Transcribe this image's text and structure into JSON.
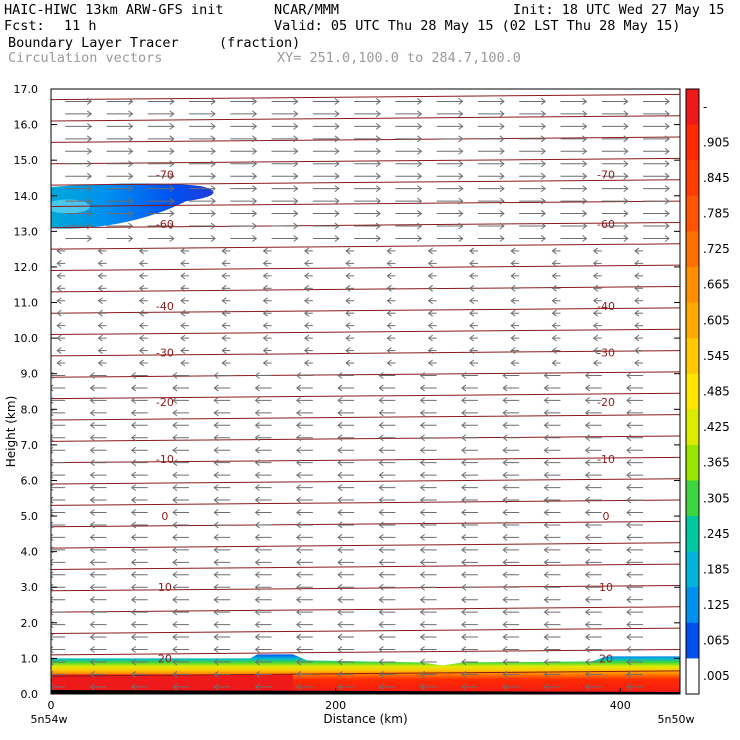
{
  "header": {
    "model": "HAIC-HIWC 13km ARW-GFS init",
    "org": "NCAR/MMM",
    "init": "Init: 18 UTC Wed 27 May 15",
    "fcst_label": "Fcst:",
    "fcst_value": "11 h",
    "valid": "Valid: 05 UTC Thu 28 May 15 (02 LST Thu 28 May 15)",
    "field": "Boundary Layer Tracer",
    "field_units": "(fraction)",
    "vectors": "Circulation vectors",
    "xy": "XY= 251.0,100.0 to 284.7,100.0"
  },
  "chart_data": {
    "type": "heatmap",
    "title": "Boundary Layer Tracer",
    "xlabel": "Distance (km)",
    "ylabel": "Height (km)",
    "xlim": [
      0,
      442
    ],
    "ylim": [
      0,
      17
    ],
    "x_ticks": [
      "0",
      "200",
      "400"
    ],
    "y_ticks": [
      "0.0",
      "1.0",
      "2.0",
      "3.0",
      "4.0",
      "5.0",
      "6.0",
      "7.0",
      "8.0",
      "9.0",
      "10.0",
      "11.0",
      "12.0",
      "13.0",
      "14.0",
      "15.0",
      "16.0",
      "17.0"
    ],
    "x_endpoint_labels": [
      "5n54w",
      "5n50w"
    ],
    "colorbar": {
      "labels": [
        "-",
        ".905",
        ".845",
        ".785",
        ".725",
        ".665",
        ".605",
        ".545",
        ".485",
        ".425",
        ".365",
        ".305",
        ".245",
        ".185",
        ".125",
        ".065",
        ".005"
      ],
      "colors": [
        "#ee1a1a",
        "#ff2a00",
        "#ff3c00",
        "#ff5500",
        "#ff7000",
        "#ff8e00",
        "#ffaa00",
        "#ffc800",
        "#ffe600",
        "#dcec00",
        "#98e600",
        "#3ed63e",
        "#00c8a0",
        "#00b4dc",
        "#0090f0",
        "#0050f0",
        "#ffffff"
      ]
    },
    "temperature_contours": [
      {
        "value": 20,
        "label": "20",
        "height_km": 1.0
      },
      {
        "value": 10,
        "label": "10",
        "height_km": 3.0
      },
      {
        "value": 0,
        "label": "0",
        "height_km": 5.0
      },
      {
        "value": -10,
        "label": "-10",
        "height_km": 6.6
      },
      {
        "value": -20,
        "label": "-20",
        "height_km": 8.2
      },
      {
        "value": -30,
        "label": "-30",
        "height_km": 9.6
      },
      {
        "value": -40,
        "label": "-40",
        "height_km": 10.9
      },
      {
        "value": -60,
        "label": "-60",
        "height_km": 13.2
      },
      {
        "value": -70,
        "label": "-70",
        "height_km": 14.6
      }
    ],
    "tracer_regions": [
      {
        "name": "boundary-layer",
        "x_range": [
          0,
          442
        ],
        "top_km": 1.0,
        "value": 0.95
      },
      {
        "name": "upper-plume",
        "x_range": [
          0,
          115
        ],
        "height_range_km": [
          13.2,
          14.3
        ],
        "peak_value": 0.16
      }
    ],
    "grid": false
  }
}
